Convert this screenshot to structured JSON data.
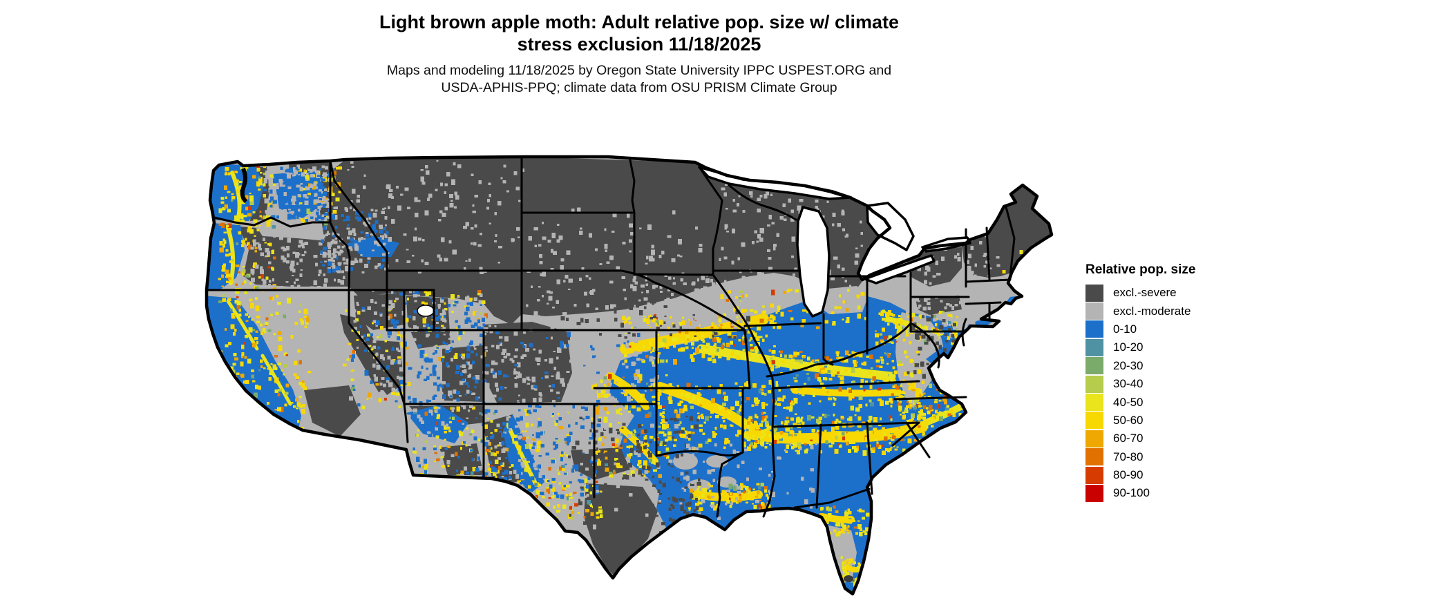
{
  "title": {
    "line1": "Light brown apple moth: Adult relative pop. size w/ climate",
    "line2": "stress exclusion 11/18/2025"
  },
  "subtitle": {
    "line1": "Maps and modeling 11/18/2025 by Oregon State University IPPC USPEST.ORG and",
    "line2": "USDA-APHIS-PPQ; climate data from OSU PRISM Climate Group"
  },
  "legend": {
    "title": "Relative pop. size",
    "items": [
      {
        "label": "excl.-severe",
        "color": "#4a4a4a"
      },
      {
        "label": "excl.-moderate",
        "color": "#b4b4b4"
      },
      {
        "label": "0-10",
        "color": "#1d70c9"
      },
      {
        "label": "10-20",
        "color": "#4e92a3"
      },
      {
        "label": "20-30",
        "color": "#7bab6a"
      },
      {
        "label": "30-40",
        "color": "#b5cc4c"
      },
      {
        "label": "40-50",
        "color": "#e9e41c"
      },
      {
        "label": "50-60",
        "color": "#f8d802"
      },
      {
        "label": "60-70",
        "color": "#efa801"
      },
      {
        "label": "70-80",
        "color": "#e17101"
      },
      {
        "label": "80-90",
        "color": "#d63c02"
      },
      {
        "label": "90-100",
        "color": "#ca0101"
      }
    ]
  },
  "palette": {
    "sv": "#4a4a4a",
    "md": "#b4b4b4",
    "b0": "#1d70c9",
    "b1": "#4e92a3",
    "g2": "#7bab6a",
    "g3": "#b5cc4c",
    "y4": "#e9e41c",
    "y5": "#f8d802",
    "a6": "#efa801",
    "o7": "#e17101",
    "r8": "#d63c02",
    "r9": "#ca0101",
    "border": "#000000",
    "water": "#ffffff"
  }
}
